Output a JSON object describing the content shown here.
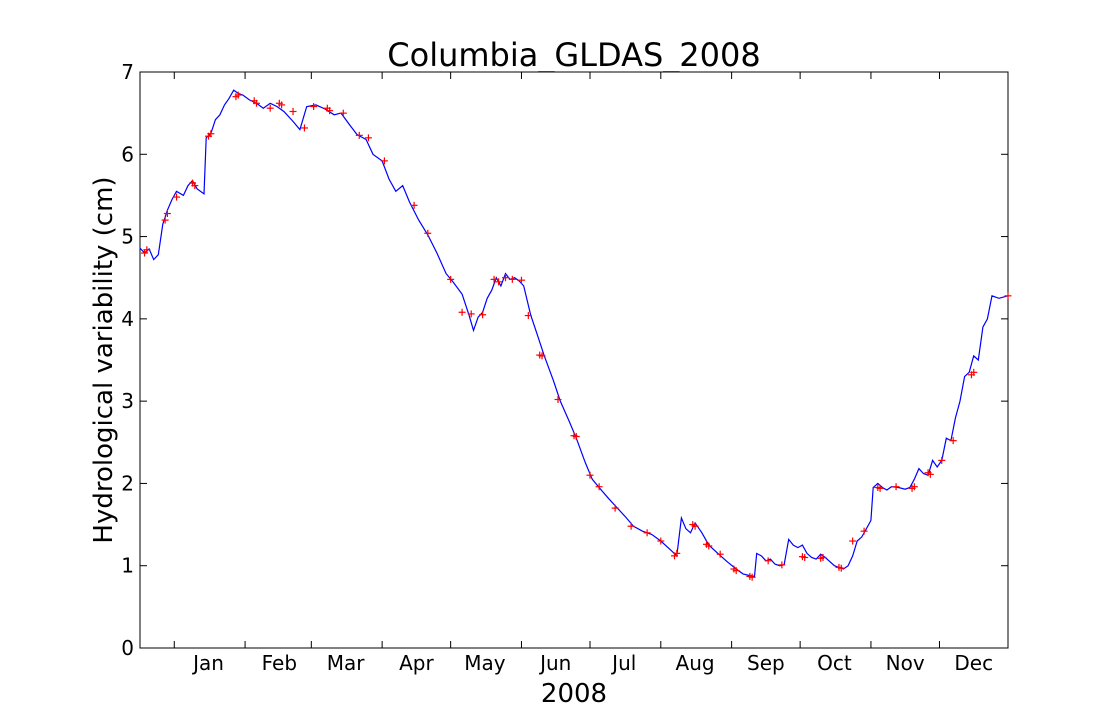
{
  "chart_data": {
    "type": "line",
    "title": "Columbia_GLDAS_2008",
    "xlabel": "2008",
    "ylabel": "Hydrological variability (cm)",
    "xlim": [
      "2007-12-17",
      "2008-12-31"
    ],
    "ylim": [
      0,
      7
    ],
    "y_ticks": [
      0,
      1,
      2,
      3,
      4,
      5,
      6,
      7
    ],
    "x_ticks": [
      {
        "date": "2008-01-01",
        "label": "Jan"
      },
      {
        "date": "2008-02-01",
        "label": "Feb"
      },
      {
        "date": "2008-03-01",
        "label": "Mar"
      },
      {
        "date": "2008-04-01",
        "label": "Apr"
      },
      {
        "date": "2008-05-01",
        "label": "May"
      },
      {
        "date": "2008-06-01",
        "label": "Jun"
      },
      {
        "date": "2008-07-01",
        "label": "Jul"
      },
      {
        "date": "2008-08-01",
        "label": "Aug"
      },
      {
        "date": "2008-09-01",
        "label": "Sep"
      },
      {
        "date": "2008-10-01",
        "label": "Oct"
      },
      {
        "date": "2008-11-01",
        "label": "Nov"
      },
      {
        "date": "2008-12-01",
        "label": "Dec"
      }
    ],
    "grid": false,
    "series": [
      {
        "style": "line",
        "color": "#0000ff",
        "points": [
          [
            "2007-12-17",
            4.86
          ],
          [
            "2007-12-19",
            4.8
          ],
          [
            "2007-12-21",
            4.85
          ],
          [
            "2007-12-23",
            4.72
          ],
          [
            "2007-12-25",
            4.78
          ],
          [
            "2007-12-27",
            5.15
          ],
          [
            "2007-12-29",
            5.32
          ],
          [
            "2007-12-31",
            5.45
          ],
          [
            "2008-01-02",
            5.55
          ],
          [
            "2008-01-05",
            5.5
          ],
          [
            "2008-01-07",
            5.62
          ],
          [
            "2008-01-09",
            5.68
          ],
          [
            "2008-01-11",
            5.58
          ],
          [
            "2008-01-14",
            5.52
          ],
          [
            "2008-01-15",
            6.2
          ],
          [
            "2008-01-17",
            6.25
          ],
          [
            "2008-01-19",
            6.42
          ],
          [
            "2008-01-21",
            6.48
          ],
          [
            "2008-01-23",
            6.6
          ],
          [
            "2008-01-25",
            6.68
          ],
          [
            "2008-01-27",
            6.78
          ],
          [
            "2008-01-29",
            6.74
          ],
          [
            "2008-01-31",
            6.72
          ],
          [
            "2008-02-03",
            6.66
          ],
          [
            "2008-02-06",
            6.62
          ],
          [
            "2008-02-09",
            6.56
          ],
          [
            "2008-02-12",
            6.62
          ],
          [
            "2008-02-15",
            6.58
          ],
          [
            "2008-02-18",
            6.52
          ],
          [
            "2008-02-22",
            6.4
          ],
          [
            "2008-02-25",
            6.3
          ],
          [
            "2008-02-28",
            6.58
          ],
          [
            "2008-03-03",
            6.6
          ],
          [
            "2008-03-07",
            6.55
          ],
          [
            "2008-03-11",
            6.48
          ],
          [
            "2008-03-14",
            6.5
          ],
          [
            "2008-03-18",
            6.35
          ],
          [
            "2008-03-21",
            6.24
          ],
          [
            "2008-03-25",
            6.18
          ],
          [
            "2008-03-28",
            6.0
          ],
          [
            "2008-04-01",
            5.92
          ],
          [
            "2008-04-04",
            5.7
          ],
          [
            "2008-04-07",
            5.55
          ],
          [
            "2008-04-10",
            5.62
          ],
          [
            "2008-04-13",
            5.42
          ],
          [
            "2008-04-17",
            5.2
          ],
          [
            "2008-04-21",
            5.02
          ],
          [
            "2008-04-25",
            4.8
          ],
          [
            "2008-04-29",
            4.55
          ],
          [
            "2008-05-02",
            4.45
          ],
          [
            "2008-05-06",
            4.3
          ],
          [
            "2008-05-09",
            4.05
          ],
          [
            "2008-05-11",
            3.86
          ],
          [
            "2008-05-13",
            4.02
          ],
          [
            "2008-05-15",
            4.08
          ],
          [
            "2008-05-17",
            4.25
          ],
          [
            "2008-05-19",
            4.35
          ],
          [
            "2008-05-21",
            4.5
          ],
          [
            "2008-05-23",
            4.4
          ],
          [
            "2008-05-25",
            4.55
          ],
          [
            "2008-05-27",
            4.48
          ],
          [
            "2008-05-29",
            4.5
          ],
          [
            "2008-05-31",
            4.46
          ],
          [
            "2008-06-02",
            4.4
          ],
          [
            "2008-06-05",
            4.05
          ],
          [
            "2008-06-08",
            3.8
          ],
          [
            "2008-06-11",
            3.55
          ],
          [
            "2008-06-15",
            3.25
          ],
          [
            "2008-06-18",
            3.0
          ],
          [
            "2008-06-22",
            2.75
          ],
          [
            "2008-06-25",
            2.55
          ],
          [
            "2008-06-29",
            2.25
          ],
          [
            "2008-07-02",
            2.05
          ],
          [
            "2008-07-05",
            1.95
          ],
          [
            "2008-07-09",
            1.82
          ],
          [
            "2008-07-13",
            1.7
          ],
          [
            "2008-07-17",
            1.58
          ],
          [
            "2008-07-20",
            1.48
          ],
          [
            "2008-07-24",
            1.42
          ],
          [
            "2008-07-28",
            1.38
          ],
          [
            "2008-08-01",
            1.3
          ],
          [
            "2008-08-05",
            1.2
          ],
          [
            "2008-08-08",
            1.12
          ],
          [
            "2008-08-10",
            1.58
          ],
          [
            "2008-08-12",
            1.45
          ],
          [
            "2008-08-14",
            1.4
          ],
          [
            "2008-08-16",
            1.52
          ],
          [
            "2008-08-19",
            1.4
          ],
          [
            "2008-08-22",
            1.25
          ],
          [
            "2008-08-26",
            1.15
          ],
          [
            "2008-08-30",
            1.05
          ],
          [
            "2008-09-03",
            0.96
          ],
          [
            "2008-09-06",
            0.9
          ],
          [
            "2008-09-09",
            0.88
          ],
          [
            "2008-09-11",
            0.87
          ],
          [
            "2008-09-12",
            1.15
          ],
          [
            "2008-09-14",
            1.12
          ],
          [
            "2008-09-16",
            1.06
          ],
          [
            "2008-09-18",
            1.08
          ],
          [
            "2008-09-20",
            1.02
          ],
          [
            "2008-09-22",
            1.0
          ],
          [
            "2008-09-24",
            1.01
          ],
          [
            "2008-09-26",
            1.32
          ],
          [
            "2008-09-28",
            1.25
          ],
          [
            "2008-09-30",
            1.22
          ],
          [
            "2008-10-02",
            1.25
          ],
          [
            "2008-10-04",
            1.15
          ],
          [
            "2008-10-06",
            1.1
          ],
          [
            "2008-10-08",
            1.08
          ],
          [
            "2008-10-10",
            1.14
          ],
          [
            "2008-10-12",
            1.1
          ],
          [
            "2008-10-14",
            1.05
          ],
          [
            "2008-10-16",
            1.0
          ],
          [
            "2008-10-18",
            0.98
          ],
          [
            "2008-10-20",
            0.96
          ],
          [
            "2008-10-22",
            1.0
          ],
          [
            "2008-10-24",
            1.12
          ],
          [
            "2008-10-26",
            1.3
          ],
          [
            "2008-10-28",
            1.35
          ],
          [
            "2008-10-30",
            1.45
          ],
          [
            "2008-11-01",
            1.55
          ],
          [
            "2008-11-02",
            1.95
          ],
          [
            "2008-11-04",
            2.0
          ],
          [
            "2008-11-06",
            1.95
          ],
          [
            "2008-11-08",
            1.92
          ],
          [
            "2008-11-10",
            1.96
          ],
          [
            "2008-11-13",
            1.95
          ],
          [
            "2008-11-16",
            1.93
          ],
          [
            "2008-11-18",
            1.95
          ],
          [
            "2008-11-20",
            2.05
          ],
          [
            "2008-11-22",
            2.18
          ],
          [
            "2008-11-24",
            2.12
          ],
          [
            "2008-11-26",
            2.1
          ],
          [
            "2008-11-28",
            2.28
          ],
          [
            "2008-11-30",
            2.2
          ],
          [
            "2008-12-02",
            2.28
          ],
          [
            "2008-12-04",
            2.55
          ],
          [
            "2008-12-06",
            2.52
          ],
          [
            "2008-12-08",
            2.8
          ],
          [
            "2008-12-10",
            3.0
          ],
          [
            "2008-12-12",
            3.3
          ],
          [
            "2008-12-14",
            3.35
          ],
          [
            "2008-12-16",
            3.55
          ],
          [
            "2008-12-18",
            3.5
          ],
          [
            "2008-12-20",
            3.9
          ],
          [
            "2008-12-22",
            4.0
          ],
          [
            "2008-12-24",
            4.28
          ],
          [
            "2008-12-27",
            4.25
          ],
          [
            "2008-12-31",
            4.28
          ]
        ]
      },
      {
        "style": "markers",
        "marker": "+",
        "color": "#ff0000",
        "points": [
          [
            "2007-12-19",
            4.8
          ],
          [
            "2007-12-20",
            4.84
          ],
          [
            "2007-12-28",
            5.2
          ],
          [
            "2007-12-29",
            5.28
          ],
          [
            "2008-01-02",
            5.48
          ],
          [
            "2008-01-09",
            5.65
          ],
          [
            "2008-01-10",
            5.62
          ],
          [
            "2008-01-16",
            6.22
          ],
          [
            "2008-01-17",
            6.25
          ],
          [
            "2008-01-28",
            6.7
          ],
          [
            "2008-01-29",
            6.72
          ],
          [
            "2008-02-05",
            6.65
          ],
          [
            "2008-02-06",
            6.62
          ],
          [
            "2008-02-12",
            6.56
          ],
          [
            "2008-02-16",
            6.62
          ],
          [
            "2008-02-17",
            6.6
          ],
          [
            "2008-02-22",
            6.52
          ],
          [
            "2008-02-27",
            6.32
          ],
          [
            "2008-03-02",
            6.58
          ],
          [
            "2008-03-08",
            6.56
          ],
          [
            "2008-03-09",
            6.53
          ],
          [
            "2008-03-15",
            6.5
          ],
          [
            "2008-03-22",
            6.23
          ],
          [
            "2008-03-26",
            6.2
          ],
          [
            "2008-04-02",
            5.92
          ],
          [
            "2008-04-15",
            5.38
          ],
          [
            "2008-04-21",
            5.04
          ],
          [
            "2008-05-01",
            4.48
          ],
          [
            "2008-05-06",
            4.08
          ],
          [
            "2008-05-10",
            4.06
          ],
          [
            "2008-05-15",
            4.05
          ],
          [
            "2008-05-20",
            4.48
          ],
          [
            "2008-05-22",
            4.45
          ],
          [
            "2008-05-25",
            4.5
          ],
          [
            "2008-05-28",
            4.48
          ],
          [
            "2008-06-01",
            4.47
          ],
          [
            "2008-06-04",
            4.04
          ],
          [
            "2008-06-09",
            3.56
          ],
          [
            "2008-06-10",
            3.55
          ],
          [
            "2008-06-17",
            3.02
          ],
          [
            "2008-06-24",
            2.58
          ],
          [
            "2008-06-25",
            2.57
          ],
          [
            "2008-07-01",
            2.1
          ],
          [
            "2008-07-05",
            1.96
          ],
          [
            "2008-07-12",
            1.7
          ],
          [
            "2008-07-19",
            1.48
          ],
          [
            "2008-07-26",
            1.4
          ],
          [
            "2008-08-01",
            1.3
          ],
          [
            "2008-08-07",
            1.12
          ],
          [
            "2008-08-08",
            1.15
          ],
          [
            "2008-08-15",
            1.5
          ],
          [
            "2008-08-16",
            1.48
          ],
          [
            "2008-08-21",
            1.26
          ],
          [
            "2008-08-22",
            1.24
          ],
          [
            "2008-08-27",
            1.14
          ],
          [
            "2008-09-02",
            0.96
          ],
          [
            "2008-09-03",
            0.94
          ],
          [
            "2008-09-09",
            0.87
          ],
          [
            "2008-09-10",
            0.86
          ],
          [
            "2008-09-17",
            1.06
          ],
          [
            "2008-09-23",
            1.01
          ],
          [
            "2008-10-02",
            1.11
          ],
          [
            "2008-10-03",
            1.1
          ],
          [
            "2008-10-10",
            1.09
          ],
          [
            "2008-10-11",
            1.1
          ],
          [
            "2008-10-18",
            0.98
          ],
          [
            "2008-10-19",
            0.97
          ],
          [
            "2008-10-24",
            1.3
          ],
          [
            "2008-10-29",
            1.42
          ],
          [
            "2008-11-04",
            1.95
          ],
          [
            "2008-11-05",
            1.94
          ],
          [
            "2008-11-12",
            1.96
          ],
          [
            "2008-11-19",
            1.94
          ],
          [
            "2008-11-20",
            1.96
          ],
          [
            "2008-11-26",
            2.13
          ],
          [
            "2008-11-27",
            2.11
          ],
          [
            "2008-12-02",
            2.28
          ],
          [
            "2008-12-07",
            2.52
          ],
          [
            "2008-12-15",
            3.32
          ],
          [
            "2008-12-16",
            3.35
          ],
          [
            "2008-12-31",
            4.28
          ]
        ]
      }
    ]
  }
}
